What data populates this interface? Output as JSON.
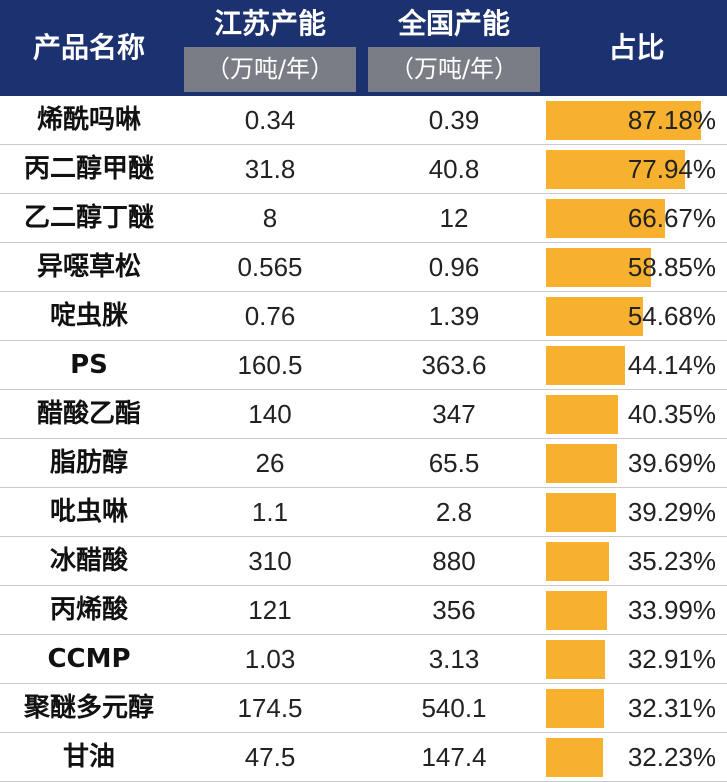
{
  "header": {
    "product_name": "产品名称",
    "jiangsu_capacity": "江苏产能",
    "national_capacity": "全国产能",
    "jiangsu_unit": "（万吨/年）",
    "national_unit": "（万吨/年）",
    "ratio": "占比"
  },
  "colors": {
    "header_bg": "#1b3170",
    "unit_bg": "#7a7d85",
    "bar": "#f7b12e"
  },
  "chart_data": {
    "type": "table",
    "columns": [
      "产品名称",
      "江苏产能（万吨/年）",
      "全国产能（万吨/年）",
      "占比"
    ],
    "rows": [
      {
        "name": "烯酰吗啉",
        "jiangsu": "0.34",
        "national": "0.39",
        "ratio_label": "87.18%",
        "ratio": 87.18
      },
      {
        "name": "丙二醇甲醚",
        "jiangsu": "31.8",
        "national": "40.8",
        "ratio_label": "77.94%",
        "ratio": 77.94
      },
      {
        "name": "乙二醇丁醚",
        "jiangsu": "8",
        "national": "12",
        "ratio_label": "66.67%",
        "ratio": 66.67
      },
      {
        "name": "异噁草松",
        "jiangsu": "0.565",
        "national": "0.96",
        "ratio_label": "58.85%",
        "ratio": 58.85
      },
      {
        "name": "啶虫脒",
        "jiangsu": "0.76",
        "national": "1.39",
        "ratio_label": "54.68%",
        "ratio": 54.68
      },
      {
        "name": "PS",
        "jiangsu": "160.5",
        "national": "363.6",
        "ratio_label": "44.14%",
        "ratio": 44.14
      },
      {
        "name": "醋酸乙酯",
        "jiangsu": "140",
        "national": "347",
        "ratio_label": "40.35%",
        "ratio": 40.35
      },
      {
        "name": "脂肪醇",
        "jiangsu": "26",
        "national": "65.5",
        "ratio_label": "39.69%",
        "ratio": 39.69
      },
      {
        "name": "吡虫啉",
        "jiangsu": "1.1",
        "national": "2.8",
        "ratio_label": "39.29%",
        "ratio": 39.29
      },
      {
        "name": "冰醋酸",
        "jiangsu": "310",
        "national": "880",
        "ratio_label": "35.23%",
        "ratio": 35.23
      },
      {
        "name": "丙烯酸",
        "jiangsu": "121",
        "national": "356",
        "ratio_label": "33.99%",
        "ratio": 33.99
      },
      {
        "name": "CCMP",
        "jiangsu": "1.03",
        "national": "3.13",
        "ratio_label": "32.91%",
        "ratio": 32.91
      },
      {
        "name": "聚醚多元醇",
        "jiangsu": "174.5",
        "national": "540.1",
        "ratio_label": "32.31%",
        "ratio": 32.31
      },
      {
        "name": "甘油",
        "jiangsu": "47.5",
        "national": "147.4",
        "ratio_label": "32.23%",
        "ratio": 32.23
      }
    ]
  }
}
